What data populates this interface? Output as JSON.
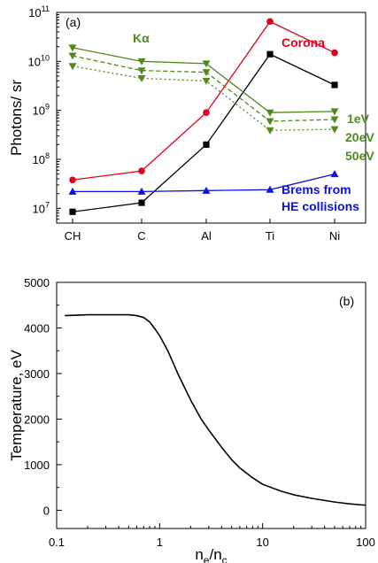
{
  "chart_data": [
    {
      "type": "line",
      "panel_label": "(a)",
      "ylabel": "Photons/ sr",
      "yscale": "log",
      "ylim": [
        5000000,
        100000000000
      ],
      "yticks": [
        {
          "value": 10000000,
          "base": "10",
          "exp": "7"
        },
        {
          "value": 100000000,
          "base": "10",
          "exp": "8"
        },
        {
          "value": 1000000000,
          "base": "10",
          "exp": "9"
        },
        {
          "value": 10000000000,
          "base": "10",
          "exp": "10"
        },
        {
          "value": 100000000000,
          "base": "10",
          "exp": "11"
        }
      ],
      "categories": [
        "CH",
        "C",
        "Al",
        "Ti",
        "Ni"
      ],
      "series": [
        {
          "name": "Corona",
          "color": "#e0001b",
          "marker": "circle",
          "dash": "solid",
          "values": [
            38000000,
            58000000,
            900000000,
            65000000000,
            15000000000
          ]
        },
        {
          "color": "#000000",
          "marker": "square",
          "dash": "solid",
          "values": [
            8500000,
            13000000,
            200000000,
            14000000000,
            3300000000
          ]
        },
        {
          "name": "Brems from HE collisions",
          "color": "#0a10e6",
          "marker": "triangle-up",
          "dash": "solid",
          "values": [
            22000000,
            22000000,
            23000000,
            24000000,
            50000000
          ]
        },
        {
          "name": "1eV",
          "color": "#4f8a1f",
          "marker": "triangle-down",
          "dash": "solid",
          "values": [
            19000000000,
            10000000000,
            9000000000,
            900000000,
            950000000
          ]
        },
        {
          "name": "20eV",
          "color": "#4f8a1f",
          "marker": "triangle-down",
          "dash": "dash",
          "values": [
            13000000000,
            6500000000,
            6000000000,
            600000000,
            650000000
          ]
        },
        {
          "name": "50eV",
          "color": "#4f8a1f",
          "marker": "triangle-down",
          "dash": "dot",
          "values": [
            8000000000,
            4500000000,
            4000000000,
            390000000,
            410000000
          ]
        }
      ],
      "annotations": [
        {
          "text": "Kα",
          "color": "#4f8a1f"
        },
        {
          "text": "Corona",
          "color": "#e0001b"
        },
        {
          "text": "1eV",
          "color": "#4f8a1f"
        },
        {
          "text": "20eV",
          "color": "#4f8a1f"
        },
        {
          "text": "50eV",
          "color": "#4f8a1f"
        },
        {
          "text": "Brems from",
          "color": "#0a10e6"
        },
        {
          "text": "HE collisions",
          "color": "#0a10e6"
        }
      ]
    },
    {
      "type": "line",
      "panel_label": "(b)",
      "ylabel": "Temperature, eV",
      "xlabel_base": "n",
      "xlabel_sub1": "e",
      "xlabel_mid": "/n",
      "xlabel_sub2": "c",
      "xscale": "log",
      "xlim": [
        0.1,
        100
      ],
      "ylim": [
        -400,
        5000
      ],
      "xticks": [
        "0.1",
        "1",
        "10",
        "100"
      ],
      "yticks": [
        "0",
        "1000",
        "2000",
        "3000",
        "4000",
        "5000"
      ],
      "series": [
        {
          "color": "#000000",
          "x": [
            0.12,
            0.2,
            0.3,
            0.5,
            0.6,
            0.7,
            0.8,
            0.9,
            1.0,
            1.2,
            1.5,
            2.0,
            2.5,
            3.0,
            4.0,
            5.0,
            6.0,
            8.0,
            10.0,
            15.0,
            20.0,
            30.0,
            50.0,
            70.0,
            100.0
          ],
          "values": [
            4270,
            4290,
            4290,
            4290,
            4270,
            4230,
            4130,
            3980,
            3830,
            3500,
            3000,
            2420,
            2020,
            1760,
            1380,
            1110,
            930,
            710,
            570,
            420,
            340,
            260,
            180,
            140,
            110
          ]
        }
      ]
    }
  ]
}
